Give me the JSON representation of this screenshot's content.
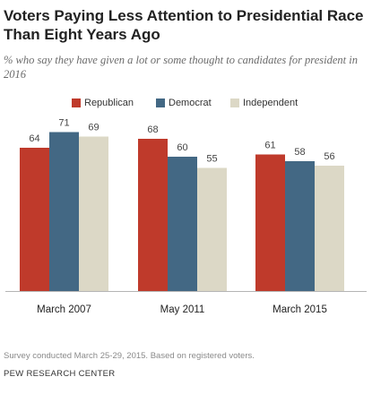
{
  "chart_data": {
    "type": "bar",
    "title": "Voters Paying Less Attention to Presidential Race Than Eight Years Ago",
    "subtitle": "% who say they have given a lot or some thought to candidates for president in 2016",
    "categories": [
      "March 2007",
      "May 2011",
      "March 2015"
    ],
    "series": [
      {
        "name": "Republican",
        "values": [
          64,
          68,
          61
        ],
        "color": "#bf3a2b"
      },
      {
        "name": "Democrat",
        "values": [
          71,
          60,
          58
        ],
        "color": "#436884"
      },
      {
        "name": "Independent",
        "values": [
          69,
          55,
          56
        ],
        "color": "#dcd8c6"
      }
    ],
    "ylim": [
      0,
      100
    ],
    "grid": false,
    "legend": "top"
  },
  "footnote": "Survey conducted March 25-29, 2015. Based on registered voters.",
  "source": "PEW RESEARCH CENTER"
}
